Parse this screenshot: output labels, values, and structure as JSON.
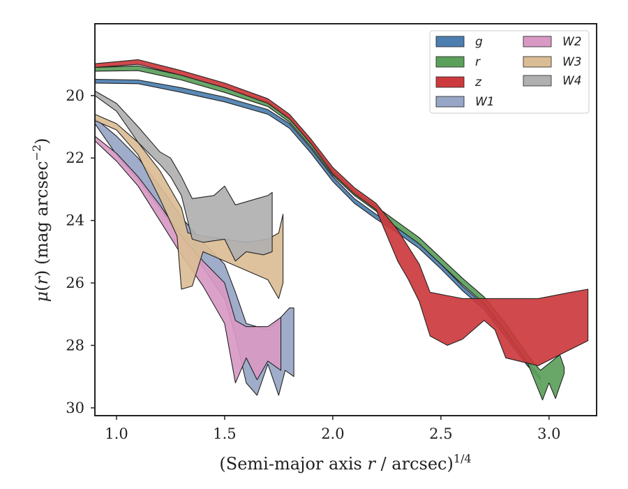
{
  "chart_data": {
    "type": "area",
    "xlabel": "(Semi-major axis r / arcsec)^{1/4}",
    "ylabel": "μ(r) (mag arcsec^{-2})",
    "xlim": [
      0.9,
      3.22
    ],
    "ylim": [
      30.25,
      17.7
    ],
    "y_inverted": true,
    "x_ticks": [
      1.0,
      1.5,
      2.0,
      2.5,
      3.0
    ],
    "x_tick_labels": [
      "1.0",
      "1.5",
      "2.0",
      "2.5",
      "3.0"
    ],
    "y_ticks": [
      20,
      22,
      24,
      26,
      28,
      30
    ],
    "y_tick_labels": [
      "20",
      "22",
      "24",
      "26",
      "28",
      "30"
    ],
    "legend": {
      "placement": "top-right",
      "columns": 2
    },
    "grid": false,
    "series": [
      {
        "name": "g",
        "color": "#4c7fb0",
        "upper": [
          [
            0.9,
            19.48
          ],
          [
            1.1,
            19.5
          ],
          [
            1.3,
            19.75
          ],
          [
            1.5,
            20.05
          ],
          [
            1.7,
            20.45
          ],
          [
            1.8,
            20.9
          ],
          [
            1.9,
            21.7
          ],
          [
            2.0,
            22.6
          ],
          [
            2.1,
            23.3
          ],
          [
            2.2,
            23.8
          ],
          [
            2.3,
            24.25
          ],
          [
            2.4,
            24.75
          ],
          [
            2.5,
            25.4
          ],
          [
            2.6,
            26.1
          ],
          [
            2.7,
            26.7
          ],
          [
            2.8,
            27.6
          ],
          [
            2.9,
            28.5
          ],
          [
            2.96,
            29.0
          ]
        ],
        "lower": [
          [
            2.96,
            29.1
          ],
          [
            2.9,
            28.65
          ],
          [
            2.8,
            27.75
          ],
          [
            2.7,
            26.85
          ],
          [
            2.6,
            26.25
          ],
          [
            2.5,
            25.55
          ],
          [
            2.4,
            24.9
          ],
          [
            2.3,
            24.4
          ],
          [
            2.2,
            23.95
          ],
          [
            2.1,
            23.45
          ],
          [
            2.0,
            22.75
          ],
          [
            1.9,
            21.85
          ],
          [
            1.8,
            21.05
          ],
          [
            1.7,
            20.6
          ],
          [
            1.5,
            20.2
          ],
          [
            1.3,
            19.9
          ],
          [
            1.1,
            19.62
          ],
          [
            0.9,
            19.6
          ]
        ]
      },
      {
        "name": "r",
        "color": "#5ba05b",
        "upper": [
          [
            0.9,
            19.1
          ],
          [
            1.1,
            19.05
          ],
          [
            1.3,
            19.35
          ],
          [
            1.5,
            19.75
          ],
          [
            1.7,
            20.2
          ],
          [
            1.8,
            20.7
          ],
          [
            1.9,
            21.5
          ],
          [
            2.0,
            22.4
          ],
          [
            2.1,
            23.05
          ],
          [
            2.2,
            23.55
          ],
          [
            2.3,
            24.05
          ],
          [
            2.4,
            24.55
          ],
          [
            2.5,
            25.2
          ],
          [
            2.6,
            25.85
          ],
          [
            2.7,
            26.45
          ],
          [
            2.8,
            27.3
          ],
          [
            2.9,
            28.3
          ],
          [
            2.96,
            28.8
          ],
          [
            3.05,
            28.3
          ],
          [
            3.07,
            28.7
          ]
        ],
        "lower": [
          [
            3.07,
            28.9
          ],
          [
            3.03,
            29.7
          ],
          [
            3.0,
            29.2
          ],
          [
            2.97,
            29.75
          ],
          [
            2.9,
            28.55
          ],
          [
            2.8,
            27.55
          ],
          [
            2.7,
            26.65
          ],
          [
            2.6,
            26.05
          ],
          [
            2.5,
            25.4
          ],
          [
            2.4,
            24.75
          ],
          [
            2.3,
            24.25
          ],
          [
            2.2,
            23.7
          ],
          [
            2.1,
            23.2
          ],
          [
            2.0,
            22.55
          ],
          [
            1.9,
            21.65
          ],
          [
            1.8,
            20.85
          ],
          [
            1.7,
            20.35
          ],
          [
            1.5,
            19.9
          ],
          [
            1.3,
            19.5
          ],
          [
            1.1,
            19.2
          ],
          [
            0.9,
            19.22
          ]
        ]
      },
      {
        "name": "z",
        "color": "#cc3a3d",
        "upper": [
          [
            0.9,
            18.98
          ],
          [
            1.1,
            18.85
          ],
          [
            1.3,
            19.2
          ],
          [
            1.5,
            19.6
          ],
          [
            1.7,
            20.1
          ],
          [
            1.8,
            20.6
          ],
          [
            1.9,
            21.4
          ],
          [
            2.0,
            22.3
          ],
          [
            2.1,
            22.95
          ],
          [
            2.2,
            23.45
          ],
          [
            2.3,
            24.3
          ],
          [
            2.4,
            25.4
          ],
          [
            2.45,
            26.3
          ],
          [
            2.6,
            26.5
          ],
          [
            2.8,
            26.5
          ],
          [
            2.95,
            26.5
          ],
          [
            3.1,
            26.3
          ],
          [
            3.18,
            26.2
          ],
          [
            3.18,
            27.7
          ]
        ],
        "lower": [
          [
            3.18,
            27.85
          ],
          [
            3.05,
            28.3
          ],
          [
            2.95,
            28.65
          ],
          [
            2.8,
            28.4
          ],
          [
            2.75,
            27.5
          ],
          [
            2.7,
            27.2
          ],
          [
            2.6,
            27.8
          ],
          [
            2.53,
            28.0
          ],
          [
            2.45,
            27.7
          ],
          [
            2.4,
            26.6
          ],
          [
            2.35,
            25.9
          ],
          [
            2.3,
            25.3
          ],
          [
            2.2,
            23.65
          ],
          [
            2.1,
            23.15
          ],
          [
            2.0,
            22.5
          ],
          [
            1.9,
            21.55
          ],
          [
            1.8,
            20.75
          ],
          [
            1.7,
            20.25
          ],
          [
            1.5,
            19.75
          ],
          [
            1.3,
            19.35
          ],
          [
            1.1,
            19.0
          ],
          [
            0.9,
            19.1
          ]
        ]
      },
      {
        "name": "W1",
        "color": "#97a6c6",
        "upper": [
          [
            0.9,
            20.72
          ],
          [
            1.0,
            21.3
          ],
          [
            1.1,
            22.0
          ],
          [
            1.2,
            22.9
          ],
          [
            1.3,
            23.9
          ],
          [
            1.4,
            24.7
          ],
          [
            1.5,
            25.4
          ],
          [
            1.55,
            26.3
          ],
          [
            1.6,
            27.3
          ],
          [
            1.7,
            27.5
          ],
          [
            1.76,
            27.1
          ],
          [
            1.8,
            26.8
          ],
          [
            1.82,
            26.8
          ],
          [
            1.82,
            29.0
          ]
        ],
        "lower": [
          [
            1.82,
            29.0
          ],
          [
            1.78,
            28.8
          ],
          [
            1.75,
            29.6
          ],
          [
            1.7,
            28.6
          ],
          [
            1.65,
            29.6
          ],
          [
            1.6,
            29.2
          ],
          [
            1.55,
            27.7
          ],
          [
            1.5,
            26.5
          ],
          [
            1.4,
            25.5
          ],
          [
            1.3,
            24.6
          ],
          [
            1.2,
            23.6
          ],
          [
            1.1,
            22.7
          ],
          [
            1.0,
            21.9
          ],
          [
            0.9,
            20.9
          ]
        ]
      },
      {
        "name": "W2",
        "color": "#d899c4",
        "upper": [
          [
            0.9,
            21.3
          ],
          [
            1.0,
            21.85
          ],
          [
            1.1,
            22.6
          ],
          [
            1.2,
            23.5
          ],
          [
            1.3,
            24.5
          ],
          [
            1.4,
            25.3
          ],
          [
            1.5,
            26.0
          ],
          [
            1.55,
            27.2
          ],
          [
            1.6,
            27.4
          ],
          [
            1.7,
            27.4
          ],
          [
            1.76,
            27.1
          ]
        ],
        "lower": [
          [
            1.76,
            28.8
          ],
          [
            1.7,
            28.5
          ],
          [
            1.65,
            29.1
          ],
          [
            1.6,
            28.4
          ],
          [
            1.55,
            29.2
          ],
          [
            1.5,
            27.3
          ],
          [
            1.4,
            26.1
          ],
          [
            1.3,
            25.1
          ],
          [
            1.2,
            24.0
          ],
          [
            1.1,
            22.9
          ],
          [
            1.0,
            22.1
          ],
          [
            0.9,
            21.45
          ]
        ]
      },
      {
        "name": "W3",
        "color": "#dbbd95",
        "upper": [
          [
            0.9,
            20.6
          ],
          [
            1.0,
            20.9
          ],
          [
            1.1,
            21.5
          ],
          [
            1.2,
            22.4
          ],
          [
            1.25,
            23.0
          ],
          [
            1.3,
            23.6
          ],
          [
            1.33,
            24.4
          ],
          [
            1.4,
            24.5
          ],
          [
            1.5,
            24.6
          ],
          [
            1.6,
            24.7
          ],
          [
            1.7,
            24.6
          ],
          [
            1.75,
            24.4
          ],
          [
            1.77,
            23.8
          ]
        ],
        "lower": [
          [
            1.77,
            26.0
          ],
          [
            1.75,
            26.5
          ],
          [
            1.7,
            25.9
          ],
          [
            1.6,
            25.6
          ],
          [
            1.5,
            25.3
          ],
          [
            1.4,
            25.0
          ],
          [
            1.35,
            26.1
          ],
          [
            1.3,
            26.2
          ],
          [
            1.28,
            24.5
          ],
          [
            1.2,
            23.3
          ],
          [
            1.1,
            21.9
          ],
          [
            1.0,
            21.1
          ],
          [
            0.9,
            20.8
          ]
        ]
      },
      {
        "name": "W4",
        "color": "#b0b0b0",
        "upper": [
          [
            0.9,
            19.85
          ],
          [
            1.0,
            20.25
          ],
          [
            1.1,
            21.0
          ],
          [
            1.2,
            21.8
          ],
          [
            1.25,
            22.0
          ],
          [
            1.3,
            22.6
          ],
          [
            1.35,
            23.3
          ],
          [
            1.45,
            23.2
          ],
          [
            1.5,
            22.9
          ],
          [
            1.55,
            23.5
          ],
          [
            1.6,
            23.4
          ],
          [
            1.65,
            23.3
          ],
          [
            1.7,
            23.2
          ],
          [
            1.72,
            23.1
          ]
        ],
        "lower": [
          [
            1.72,
            25.0
          ],
          [
            1.68,
            25.1
          ],
          [
            1.6,
            25.0
          ],
          [
            1.55,
            25.3
          ],
          [
            1.5,
            24.6
          ],
          [
            1.4,
            24.7
          ],
          [
            1.35,
            24.6
          ],
          [
            1.3,
            23.2
          ],
          [
            1.25,
            22.6
          ],
          [
            1.2,
            22.2
          ],
          [
            1.1,
            21.5
          ],
          [
            1.0,
            20.5
          ],
          [
            0.9,
            20.0
          ]
        ]
      }
    ]
  },
  "legend_labels": {
    "g": "g",
    "r": "r",
    "z": "z",
    "W1": "W1",
    "W2": "W2",
    "W3": "W3",
    "W4": "W4"
  }
}
